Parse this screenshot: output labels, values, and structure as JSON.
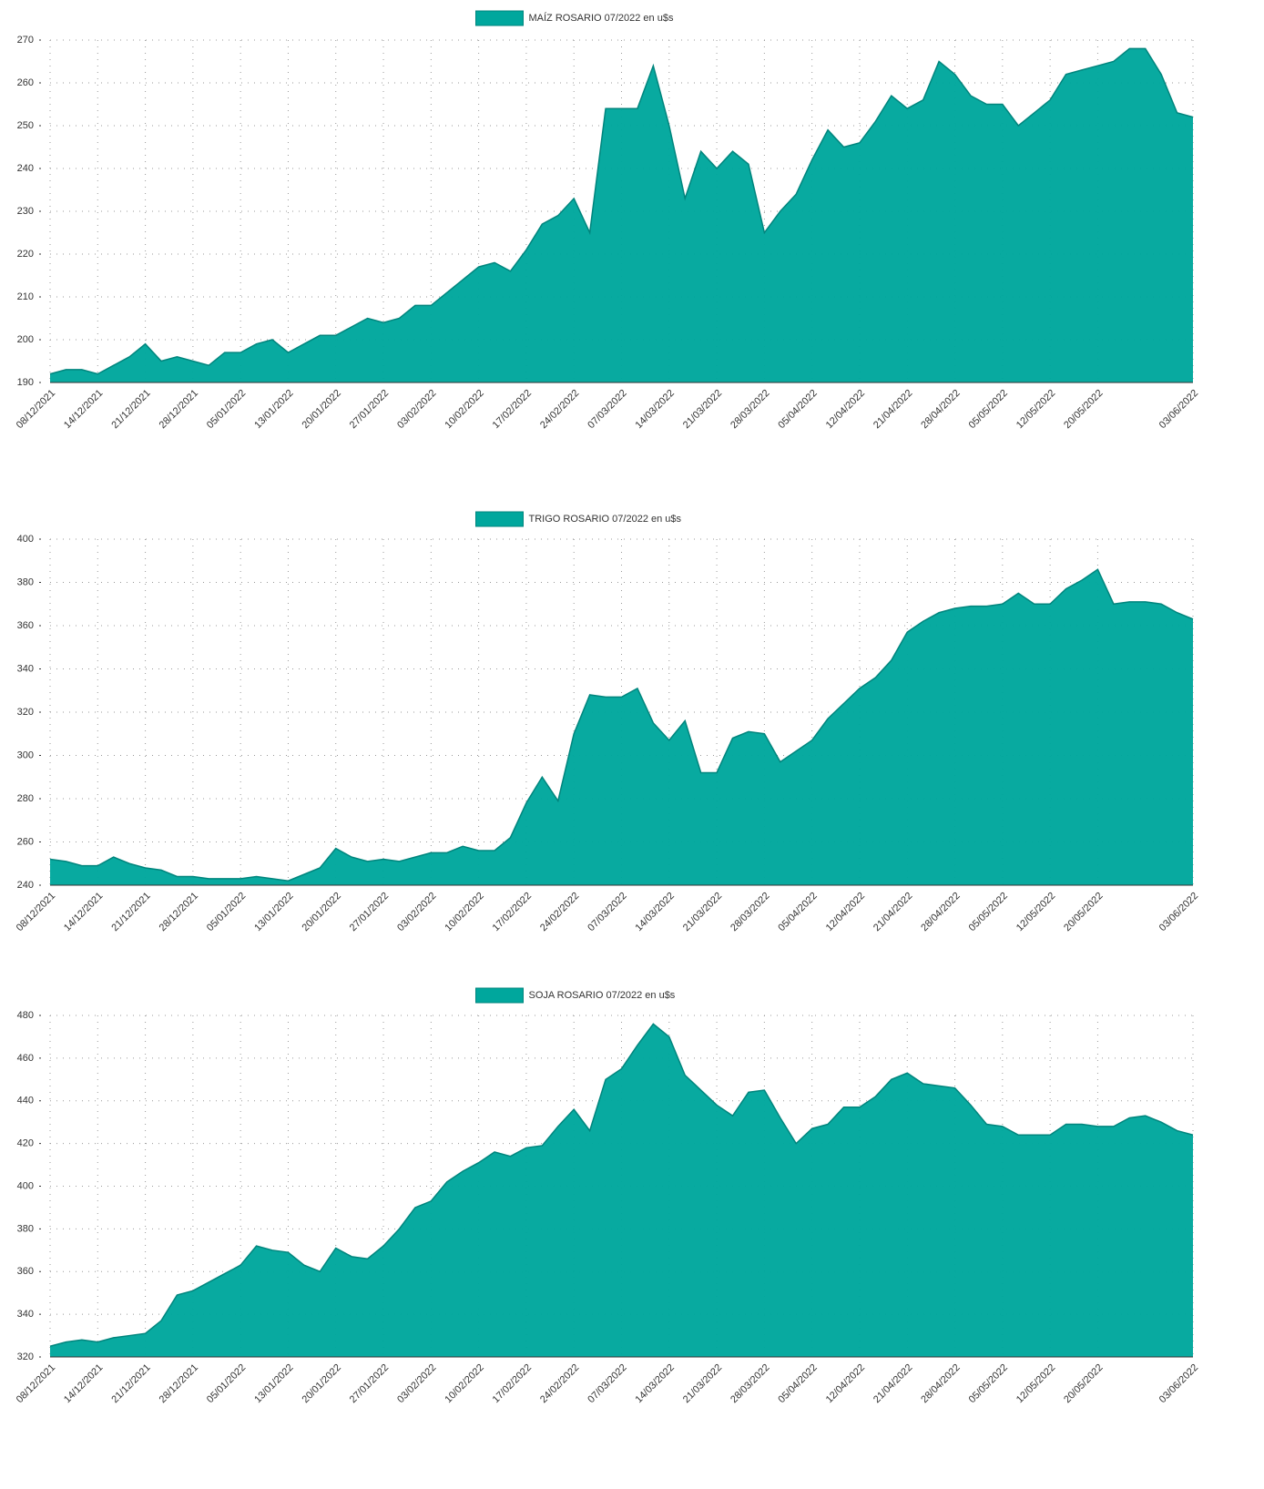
{
  "chart_data": [
    {
      "type": "area",
      "categories": [
        "08/12/2021",
        null,
        null,
        "14/12/2021",
        null,
        null,
        "21/12/2021",
        null,
        null,
        "28/12/2021",
        null,
        null,
        "05/01/2022",
        null,
        null,
        "13/01/2022",
        null,
        null,
        "20/01/2022",
        null,
        null,
        "27/01/2022",
        null,
        null,
        "03/02/2022",
        null,
        null,
        "10/02/2022",
        null,
        null,
        "17/02/2022",
        null,
        null,
        "24/02/2022",
        null,
        null,
        "07/03/2022",
        null,
        null,
        "14/03/2022",
        null,
        null,
        "21/03/2022",
        null,
        null,
        "28/03/2022",
        null,
        null,
        "05/04/2022",
        null,
        null,
        "12/04/2022",
        null,
        null,
        "21/04/2022",
        null,
        null,
        "28/04/2022",
        null,
        null,
        "05/05/2022",
        null,
        null,
        "12/05/2022",
        null,
        null,
        "20/05/2022",
        null,
        null,
        null,
        null,
        null,
        "03/06/2022"
      ],
      "series": [
        {
          "name": "MAÍZ ROSARIO 07/2022 en u$s",
          "color": "#00a79d",
          "values": [
            192,
            193,
            193,
            192,
            194,
            196,
            199,
            195,
            196,
            195,
            194,
            197,
            197,
            199,
            200,
            197,
            199,
            201,
            201,
            203,
            205,
            204,
            205,
            208,
            208,
            211,
            214,
            217,
            218,
            216,
            221,
            227,
            229,
            233,
            225,
            254,
            254,
            254,
            264,
            250,
            233,
            244,
            240,
            244,
            241,
            225,
            230,
            234,
            242,
            249,
            245,
            246,
            251,
            257,
            254,
            256,
            265,
            262,
            257,
            255,
            255,
            250,
            253,
            256,
            262,
            263,
            264,
            265,
            268,
            268,
            262,
            253,
            252
          ]
        }
      ],
      "ylim": [
        190,
        270
      ],
      "yticks": [
        190,
        200,
        210,
        220,
        230,
        240,
        250,
        260,
        270
      ],
      "grid": true
    },
    {
      "type": "area",
      "categories": [
        "08/12/2021",
        null,
        null,
        "14/12/2021",
        null,
        null,
        "21/12/2021",
        null,
        null,
        "28/12/2021",
        null,
        null,
        "05/01/2022",
        null,
        null,
        "13/01/2022",
        null,
        null,
        "20/01/2022",
        null,
        null,
        "27/01/2022",
        null,
        null,
        "03/02/2022",
        null,
        null,
        "10/02/2022",
        null,
        null,
        "17/02/2022",
        null,
        null,
        "24/02/2022",
        null,
        null,
        "07/03/2022",
        null,
        null,
        "14/03/2022",
        null,
        null,
        "21/03/2022",
        null,
        null,
        "28/03/2022",
        null,
        null,
        "05/04/2022",
        null,
        null,
        "12/04/2022",
        null,
        null,
        "21/04/2022",
        null,
        null,
        "28/04/2022",
        null,
        null,
        "05/05/2022",
        null,
        null,
        "12/05/2022",
        null,
        null,
        "20/05/2022",
        null,
        null,
        null,
        null,
        null,
        "03/06/2022"
      ],
      "series": [
        {
          "name": "TRIGO ROSARIO 07/2022 en u$s",
          "color": "#00a79d",
          "values": [
            252,
            251,
            249,
            249,
            253,
            250,
            248,
            247,
            244,
            244,
            243,
            243,
            243,
            244,
            243,
            242,
            245,
            248,
            257,
            253,
            251,
            252,
            251,
            253,
            255,
            255,
            258,
            256,
            256,
            262,
            278,
            290,
            279,
            310,
            328,
            327,
            327,
            331,
            315,
            307,
            316,
            292,
            292,
            308,
            311,
            310,
            297,
            302,
            307,
            317,
            324,
            331,
            336,
            344,
            357,
            362,
            366,
            368,
            369,
            369,
            370,
            375,
            370,
            370,
            377,
            381,
            386,
            370,
            371,
            371,
            370,
            366,
            363
          ]
        }
      ],
      "ylim": [
        240,
        400
      ],
      "yticks": [
        240,
        260,
        280,
        300,
        320,
        340,
        360,
        380,
        400
      ],
      "grid": true
    },
    {
      "type": "area",
      "categories": [
        "08/12/2021",
        null,
        null,
        "14/12/2021",
        null,
        null,
        "21/12/2021",
        null,
        null,
        "28/12/2021",
        null,
        null,
        "05/01/2022",
        null,
        null,
        "13/01/2022",
        null,
        null,
        "20/01/2022",
        null,
        null,
        "27/01/2022",
        null,
        null,
        "03/02/2022",
        null,
        null,
        "10/02/2022",
        null,
        null,
        "17/02/2022",
        null,
        null,
        "24/02/2022",
        null,
        null,
        "07/03/2022",
        null,
        null,
        "14/03/2022",
        null,
        null,
        "21/03/2022",
        null,
        null,
        "28/03/2022",
        null,
        null,
        "05/04/2022",
        null,
        null,
        "12/04/2022",
        null,
        null,
        "21/04/2022",
        null,
        null,
        "28/04/2022",
        null,
        null,
        "05/05/2022",
        null,
        null,
        "12/05/2022",
        null,
        null,
        "20/05/2022",
        null,
        null,
        null,
        null,
        null,
        "03/06/2022"
      ],
      "series": [
        {
          "name": "SOJA ROSARIO 07/2022 en u$s",
          "color": "#00a79d",
          "values": [
            325,
            327,
            328,
            327,
            329,
            330,
            331,
            337,
            349,
            351,
            355,
            359,
            363,
            372,
            370,
            369,
            363,
            360,
            371,
            367,
            366,
            372,
            380,
            390,
            393,
            402,
            407,
            411,
            416,
            414,
            418,
            419,
            428,
            436,
            426,
            450,
            455,
            466,
            476,
            470,
            452,
            445,
            438,
            433,
            444,
            445,
            432,
            420,
            427,
            429,
            437,
            437,
            442,
            450,
            453,
            448,
            447,
            446,
            438,
            429,
            428,
            424,
            424,
            424,
            429,
            429,
            428,
            428,
            432,
            433,
            430,
            426,
            424
          ]
        }
      ],
      "ylim": [
        320,
        480
      ],
      "yticks": [
        320,
        340,
        360,
        380,
        400,
        420,
        440,
        460,
        480
      ],
      "grid": true
    }
  ]
}
